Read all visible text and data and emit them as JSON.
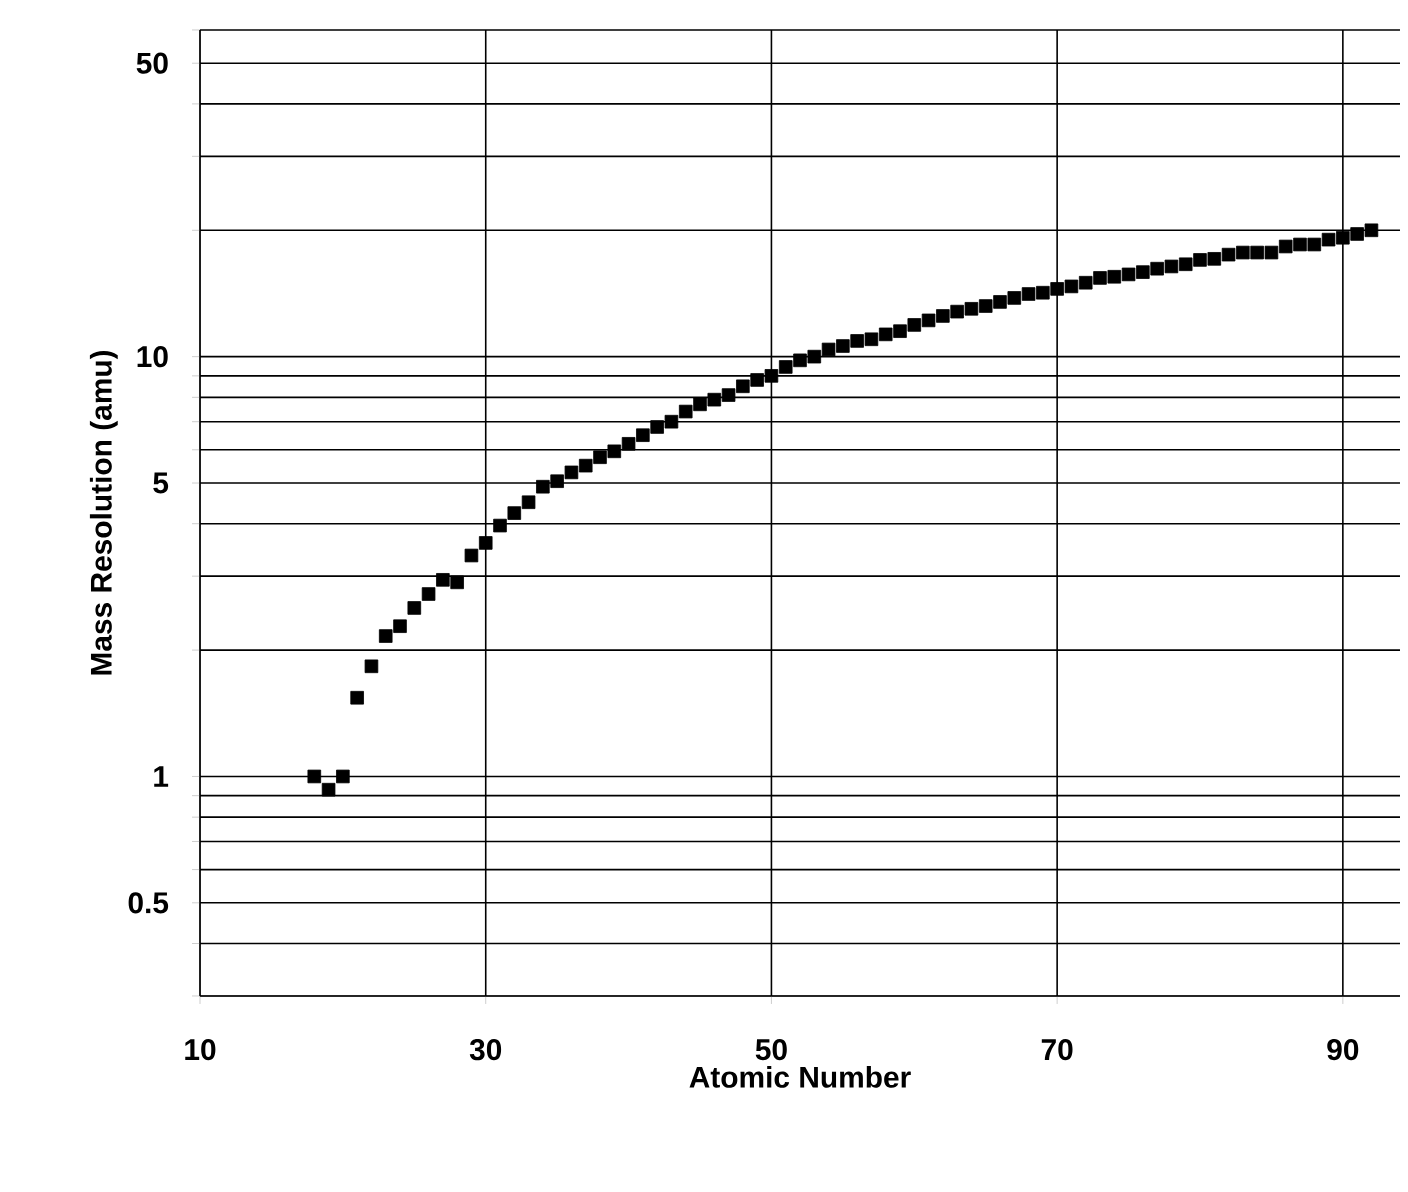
{
  "chart_data": {
    "type": "scatter",
    "xlabel": "Atomic Number",
    "ylabel": "Mass Resolution (amu)",
    "log": "y",
    "grid": true,
    "marker": "square",
    "xlim": [
      10,
      94
    ],
    "ylim": [
      0.3,
      60
    ],
    "xticks": [
      10,
      30,
      50,
      70,
      90
    ],
    "yticks": [
      {
        "value": 0.3,
        "label": null
      },
      {
        "value": 0.4,
        "label": null
      },
      0.5,
      {
        "value": 0.6,
        "label": null
      },
      {
        "value": 0.7,
        "label": null
      },
      {
        "value": 0.8,
        "label": null
      },
      {
        "value": 0.9,
        "label": null
      },
      1,
      {
        "value": 2,
        "label": null
      },
      {
        "value": 3,
        "label": null
      },
      {
        "value": 4,
        "label": null
      },
      5,
      {
        "value": 6,
        "label": null
      },
      {
        "value": 7,
        "label": null
      },
      {
        "value": 8,
        "label": null
      },
      {
        "value": 9,
        "label": null
      },
      10,
      {
        "value": 20,
        "label": null
      },
      {
        "value": 30,
        "label": null
      },
      {
        "value": 40,
        "label": null
      },
      50,
      {
        "value": 60,
        "label": null
      }
    ],
    "series": [
      {
        "color": "#000000",
        "x": [
          18,
          19,
          20,
          21,
          22,
          23,
          24,
          25,
          26,
          27,
          28,
          29,
          30,
          31,
          32,
          33,
          34,
          35,
          36,
          37,
          38,
          39,
          40,
          41,
          42,
          43,
          44,
          45,
          46,
          47,
          48,
          49,
          50,
          51,
          52,
          53,
          54,
          55,
          56,
          57,
          58,
          59,
          60,
          61,
          62,
          63,
          64,
          65,
          66,
          67,
          68,
          69,
          70,
          71,
          72,
          73,
          74,
          75,
          76,
          77,
          78,
          79,
          80,
          81,
          82,
          83,
          84,
          85,
          86,
          87,
          88,
          89,
          90,
          91,
          92
        ],
        "values": [
          1.0,
          0.93,
          1.0,
          1.54,
          1.83,
          2.16,
          2.28,
          2.52,
          2.72,
          2.94,
          2.9,
          3.36,
          3.6,
          3.96,
          4.24,
          4.5,
          4.9,
          5.05,
          5.3,
          5.5,
          5.76,
          5.95,
          6.2,
          6.5,
          6.8,
          7.0,
          7.4,
          7.7,
          7.9,
          8.1,
          8.5,
          8.8,
          9.0,
          9.45,
          9.8,
          10.0,
          10.4,
          10.6,
          10.9,
          11.0,
          11.3,
          11.5,
          11.9,
          12.2,
          12.5,
          12.8,
          13.0,
          13.2,
          13.5,
          13.8,
          14.1,
          14.2,
          14.5,
          14.7,
          15.0,
          15.4,
          15.5,
          15.7,
          15.9,
          16.2,
          16.4,
          16.6,
          17.0,
          17.1,
          17.5,
          17.7,
          17.7,
          17.7,
          18.3,
          18.5,
          18.5,
          19.0,
          19.2,
          19.6,
          20.0
        ]
      }
    ]
  }
}
